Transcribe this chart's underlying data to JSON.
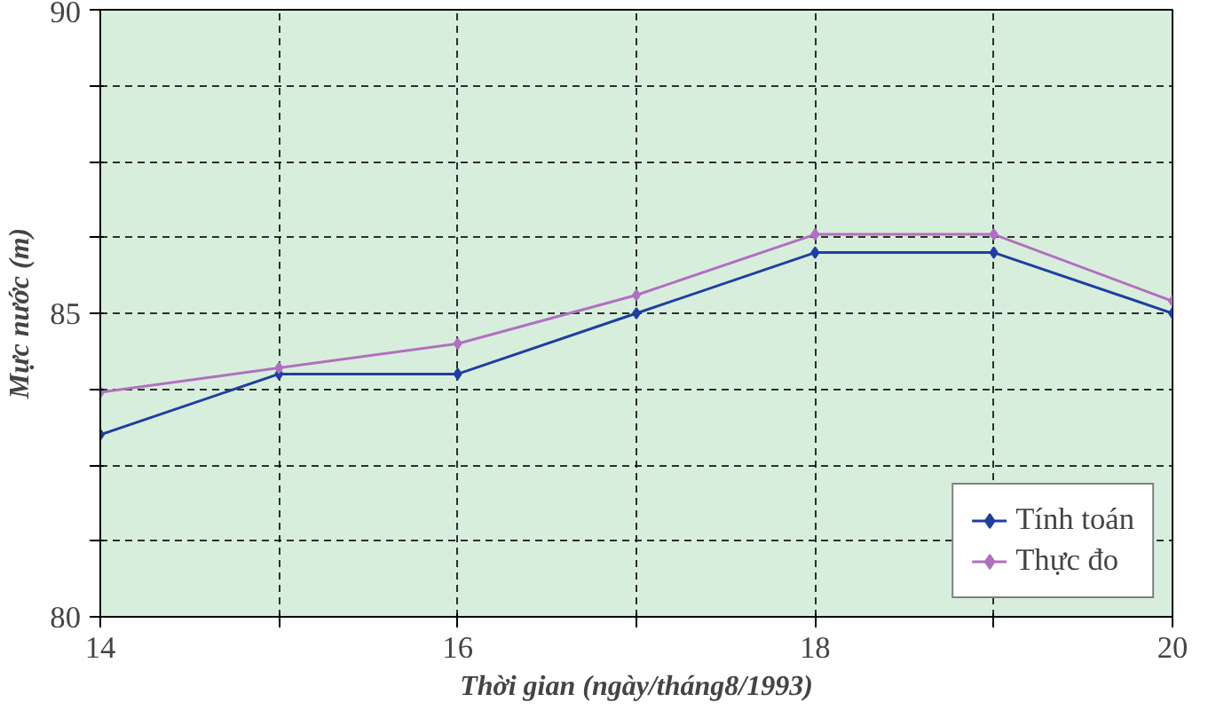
{
  "chart_data": {
    "type": "line",
    "xlabel": "Thời gian (ngày/tháng8/1993)",
    "ylabel": "Mực nước (m)",
    "x": [
      14,
      15,
      16,
      17,
      18,
      19,
      20
    ],
    "series": [
      {
        "name": "Tính toán",
        "color": "#1f3f9f",
        "values": [
          83.0,
          84.0,
          84.0,
          85.0,
          86.0,
          86.0,
          85.0
        ]
      },
      {
        "name": "Thực đo",
        "color": "#b070c0",
        "values": [
          83.7,
          84.1,
          84.5,
          85.3,
          86.3,
          86.3,
          85.2
        ]
      }
    ],
    "xlim": [
      14,
      20
    ],
    "ylim": [
      80,
      90
    ],
    "xticks": [
      14,
      {
        "value": 15,
        "label": null
      },
      16,
      {
        "value": 17,
        "label": null
      },
      18,
      {
        "value": 19,
        "label": null
      },
      20
    ],
    "yticks": [
      80,
      {
        "value": 81.25,
        "label": null
      },
      {
        "value": 82.5,
        "label": null
      },
      {
        "value": 83.75,
        "label": null
      },
      85,
      {
        "value": 86.25,
        "label": null
      },
      {
        "value": 87.5,
        "label": null
      },
      {
        "value": 88.75,
        "label": null
      },
      90
    ],
    "grid": true,
    "legend": "bottom right",
    "marker": "diamond",
    "line_style": "solid"
  }
}
